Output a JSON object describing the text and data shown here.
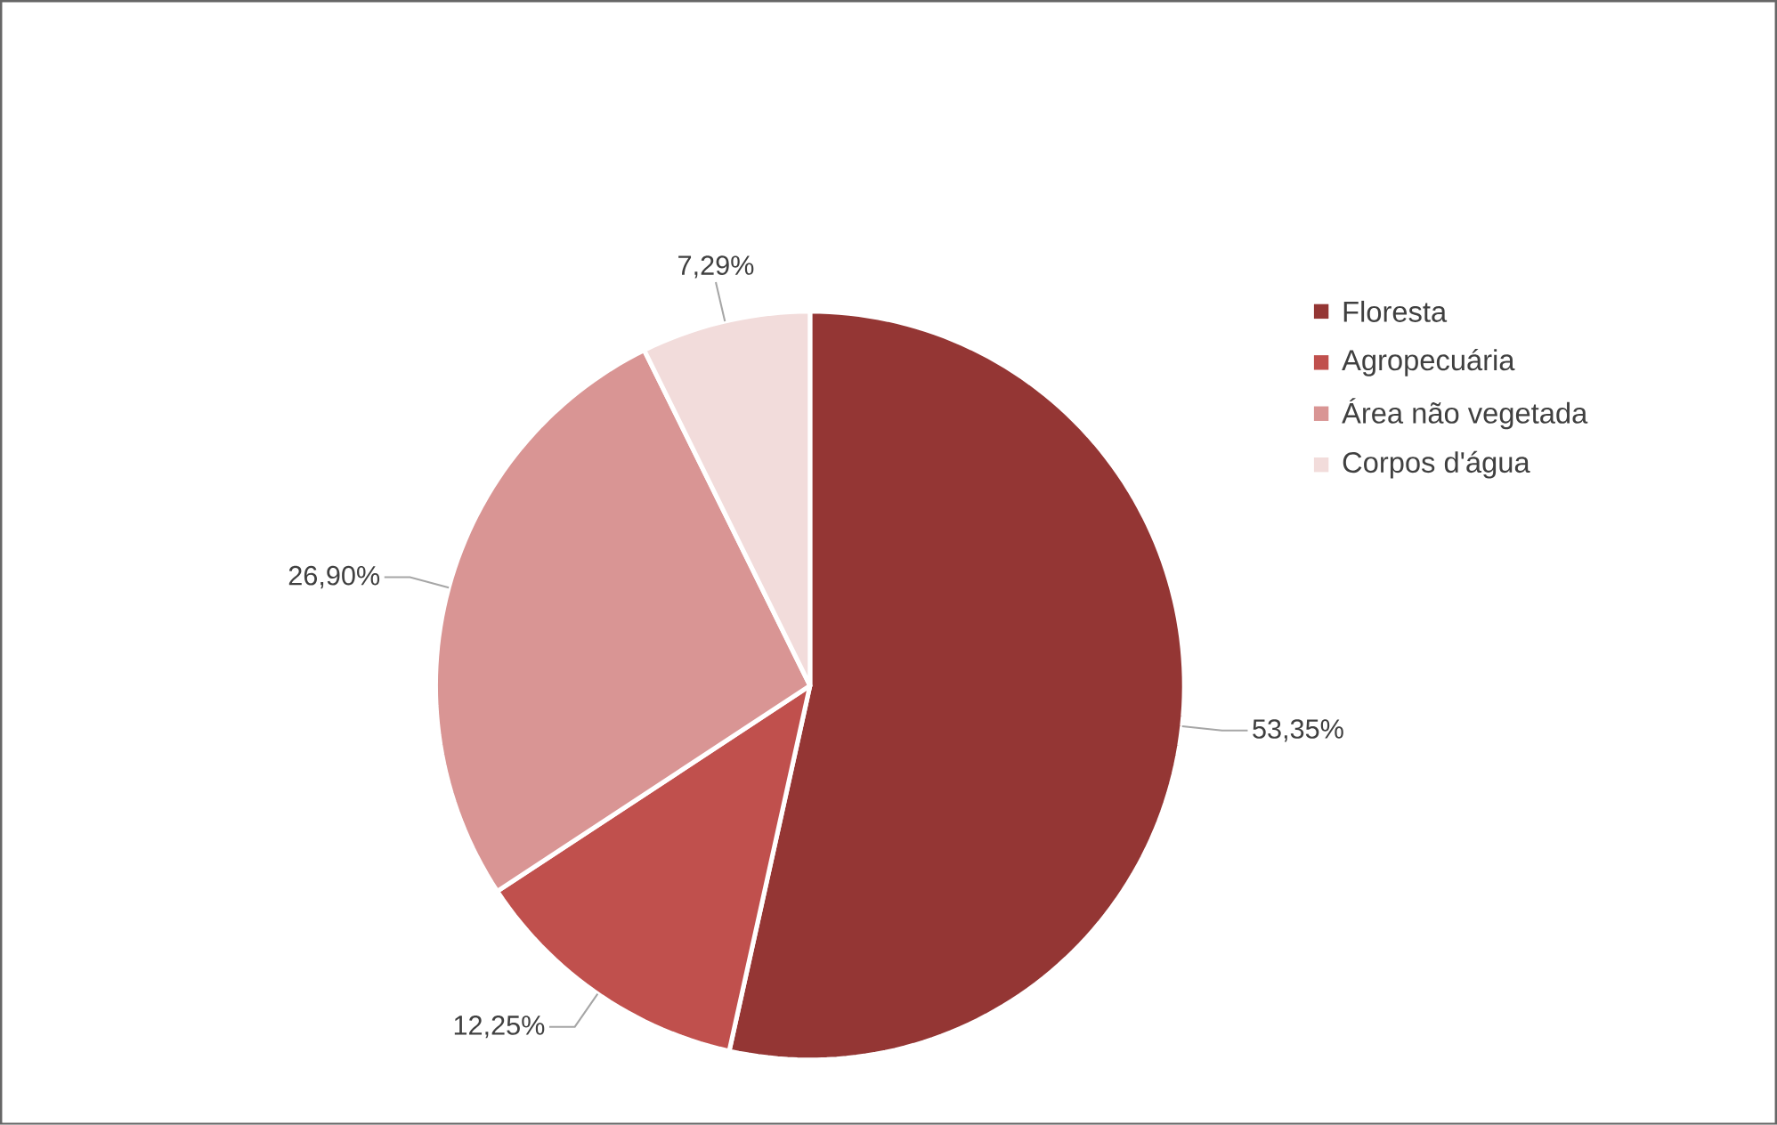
{
  "chart_data": {
    "type": "pie",
    "categories": [
      "Floresta",
      "Agropecuária",
      "Área não vegetada",
      "Corpos d'água"
    ],
    "values": [
      53.35,
      12.25,
      26.9,
      7.29
    ],
    "colors": [
      "#943634",
      "#c0504d",
      "#d99594",
      "#f2dcdb"
    ],
    "value_labels": [
      "53,35%",
      "12,25%",
      "26,90%",
      "7,29%"
    ],
    "legend": "right"
  }
}
